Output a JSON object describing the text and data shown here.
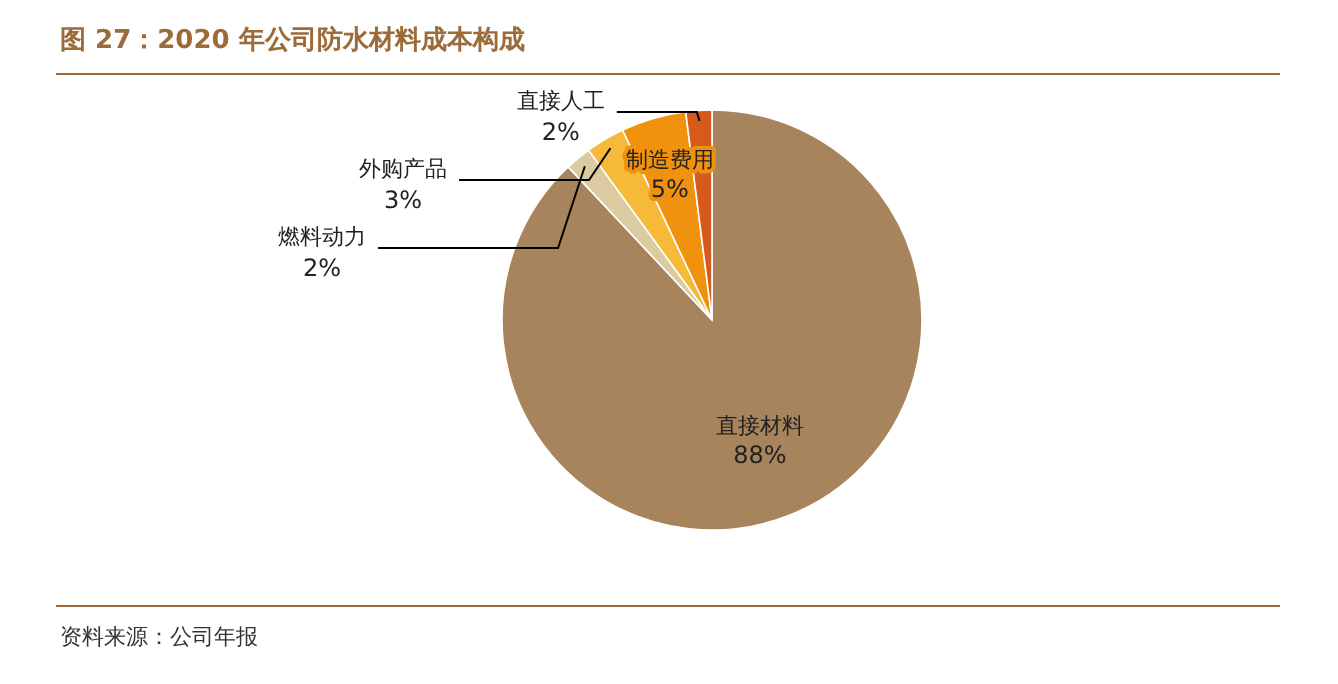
{
  "chart_data": {
    "type": "pie",
    "title": "图 27：2020 年公司防水材料成本构成",
    "categories": [
      "直接材料",
      "燃料动力",
      "外购产品",
      "制造费用",
      "直接人工"
    ],
    "values": [
      88,
      2,
      3,
      5,
      2
    ],
    "value_labels": [
      "88%",
      "2%",
      "3%",
      "5%",
      "2%"
    ],
    "colors": [
      "#a8845c",
      "#dccba0",
      "#f6b93a",
      "#f0920e",
      "#d65a1c"
    ],
    "annotations": [
      "资料来源：公司年报"
    ]
  }
}
